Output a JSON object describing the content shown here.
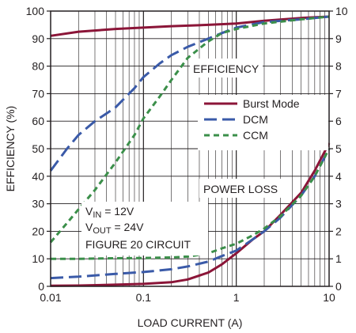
{
  "chart_data": {
    "type": "line",
    "xlabel": "LOAD CURRENT (A)",
    "ylabel": "EFFICIENCY (%)",
    "y2label": "",
    "xscale": "log",
    "xlim": [
      0.01,
      10
    ],
    "ylim": [
      0,
      100
    ],
    "y2lim": [
      0,
      10
    ],
    "grid": true,
    "legend_position": "right",
    "x_tick_labels": [
      "0.01",
      "0.1",
      "1",
      "10"
    ],
    "y_tick_labels": [
      "0",
      "10",
      "20",
      "30",
      "40",
      "50",
      "60",
      "70",
      "80",
      "90",
      "100"
    ],
    "y2_tick_labels": [
      "0",
      "1",
      "2",
      "3",
      "4",
      "5",
      "6",
      "7",
      "8",
      "9",
      "10"
    ],
    "annotations": {
      "efficiency": "EFFICIENCY",
      "power_loss": "POWER LOSS",
      "vin_main": "V",
      "vin_sub": "IN",
      "vin_value": " = 12V",
      "vout_main": "V",
      "vout_sub": "OUT",
      "vout_value": " = 24V",
      "figure": "FIGURE 20 CIRCUIT"
    },
    "series": [
      {
        "name": "Burst Mode",
        "group": "efficiency",
        "axis": "left",
        "color": "#8b1538",
        "dash": "solid",
        "x": [
          0.01,
          0.02,
          0.05,
          0.1,
          0.2,
          0.5,
          1,
          2,
          5,
          10
        ],
        "y": [
          91,
          92.5,
          93.5,
          94,
          94.5,
          95,
          95.5,
          96.5,
          97.5,
          98
        ]
      },
      {
        "name": "DCM",
        "group": "efficiency",
        "axis": "left",
        "color": "#3a5aa8",
        "dash": "long",
        "x": [
          0.01,
          0.015,
          0.02,
          0.03,
          0.05,
          0.08,
          0.1,
          0.15,
          0.2,
          0.3,
          0.5,
          0.7,
          1,
          2,
          5,
          10
        ],
        "y": [
          42,
          50,
          55,
          60,
          65,
          72,
          76,
          81,
          84,
          87,
          90,
          92,
          94,
          96,
          97,
          98
        ]
      },
      {
        "name": "CCM",
        "group": "efficiency",
        "axis": "left",
        "color": "#3b8f4a",
        "dash": "short",
        "x": [
          0.01,
          0.015,
          0.02,
          0.03,
          0.05,
          0.08,
          0.1,
          0.15,
          0.2,
          0.3,
          0.5,
          0.7,
          1,
          2,
          5,
          10
        ],
        "y": [
          16,
          23,
          28,
          35,
          45,
          55,
          61,
          69,
          75,
          83,
          89,
          92,
          93.5,
          95.5,
          97,
          98
        ]
      },
      {
        "name": "Burst Mode",
        "group": "power_loss",
        "axis": "right",
        "color": "#8b1538",
        "dash": "solid",
        "x": [
          0.01,
          0.02,
          0.05,
          0.1,
          0.2,
          0.3,
          0.5,
          0.7,
          1,
          1.5,
          2,
          3,
          5,
          7,
          10
        ],
        "y": [
          0.02,
          0.03,
          0.06,
          0.09,
          0.15,
          0.25,
          0.5,
          0.8,
          1.2,
          1.7,
          2.0,
          2.6,
          3.4,
          4.2,
          5.2
        ]
      },
      {
        "name": "DCM",
        "group": "power_loss",
        "axis": "right",
        "color": "#3a5aa8",
        "dash": "long",
        "x": [
          0.01,
          0.02,
          0.05,
          0.1,
          0.2,
          0.3,
          0.5,
          0.7,
          1,
          1.5,
          2,
          3,
          5,
          7,
          10
        ],
        "y": [
          0.3,
          0.35,
          0.45,
          0.52,
          0.62,
          0.72,
          0.9,
          1.1,
          1.3,
          1.7,
          2.0,
          2.5,
          3.3,
          4.0,
          5.0
        ]
      },
      {
        "name": "CCM",
        "group": "power_loss",
        "axis": "right",
        "color": "#3b8f4a",
        "dash": "short",
        "x": [
          0.01,
          0.02,
          0.05,
          0.1,
          0.2,
          0.3,
          0.5,
          0.7,
          1,
          1.5,
          2,
          3,
          5,
          7,
          10
        ],
        "y": [
          1.0,
          1.0,
          1.02,
          1.03,
          1.05,
          1.08,
          1.2,
          1.38,
          1.55,
          1.85,
          2.1,
          2.55,
          3.3,
          4.0,
          5.0
        ]
      }
    ],
    "legend": [
      {
        "name": "Burst Mode",
        "color": "#8b1538",
        "dash": "solid"
      },
      {
        "name": "DCM",
        "color": "#3a5aa8",
        "dash": "long"
      },
      {
        "name": "CCM",
        "color": "#3b8f4a",
        "dash": "short"
      }
    ]
  }
}
